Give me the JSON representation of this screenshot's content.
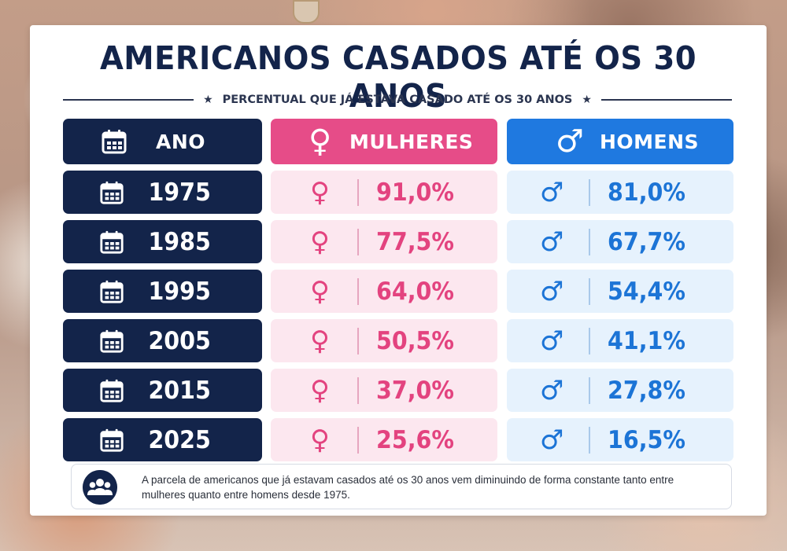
{
  "title": "AMERICANOS CASADOS ATÉ OS 30 ANOS",
  "subtitle": "PERCENTUAL QUE JÁ ESTAVA CASADO ATÉ OS 30 ANOS",
  "decor": {
    "star": "★"
  },
  "headers": {
    "year": "ANO",
    "women": "MULHERES",
    "men": "HOMENS"
  },
  "symbols": {
    "female": "♀",
    "male": "♂"
  },
  "note": "A parcela de americanos que já estavam casados até os 30 anos vem diminuindo de forma constante tanto entre mulheres quanto entre homens desde 1975.",
  "colors": {
    "navy": "#13244a",
    "pink": "#e64c88",
    "blue": "#1f79e0",
    "pink_light": "#fce7ef",
    "blue_light": "#e6f2fd"
  },
  "icons": {
    "header_year": "calendar-icon",
    "row_year": "calendar-icon",
    "note": "people-group-icon"
  },
  "chart_data": {
    "type": "table",
    "title": "AMERICANOS CASADOS ATÉ OS 30 ANOS",
    "subtitle": "PERCENTUAL QUE JÁ ESTAVA CASADO ATÉ OS 30 ANOS",
    "columns": [
      "ANO",
      "MULHERES",
      "HOMENS"
    ],
    "rows": [
      {
        "year": "1975",
        "women": "91,0%",
        "men": "81,0%"
      },
      {
        "year": "1985",
        "women": "77,5%",
        "men": "67,7%"
      },
      {
        "year": "1995",
        "women": "64,0%",
        "men": "54,4%"
      },
      {
        "year": "2005",
        "women": "50,5%",
        "men": "41,1%"
      },
      {
        "year": "2015",
        "women": "37,0%",
        "men": "27,8%"
      },
      {
        "year": "2025",
        "women": "25,6%",
        "men": "16,5%"
      }
    ]
  }
}
